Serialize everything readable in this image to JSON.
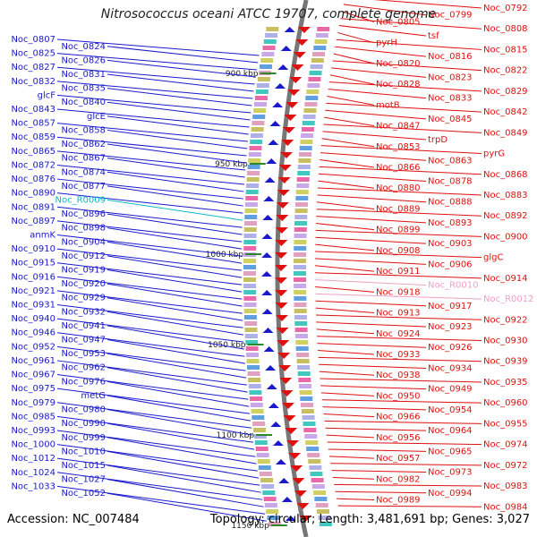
{
  "title": "Nitrosococcus oceani ATCC 19707, complete genome",
  "footer": {
    "accession": "Accession: NC_007484",
    "topology": "Topology: circular; Length: 3,481,691 bp; Genes: 3,027"
  },
  "colors": {
    "forward_strand": "#1a1acc",
    "reverse_strand": "#e01010",
    "rna": "#10b8c8",
    "rna_reverse": "#f0a0c8",
    "backbone": "#777777",
    "ticks": "#2a8a2a"
  },
  "scale_ticks": [
    "900 kbp",
    "950 kbp",
    "1000 kbp",
    "1050 kbp",
    "1100 kbp",
    "1150 kbp"
  ],
  "left_labels": [
    "Noc_0807",
    "Noc_0824",
    "Noc_0825",
    "Noc_0826",
    "Noc_0827",
    "Noc_0831",
    "Noc_0832",
    "Noc_0835",
    "glcF",
    "Noc_0840",
    "Noc_0843",
    "glcE",
    "Noc_0857",
    "Noc_0858",
    "Noc_0859",
    "Noc_0862",
    "Noc_0865",
    "Noc_0867",
    "Noc_0872",
    "Noc_0874",
    "Noc_0876",
    "Noc_0877",
    "Noc_0890",
    "Noc_R0009",
    "Noc_0891",
    "Noc_0896",
    "Noc_0897",
    "Noc_0898",
    "anmK",
    "Noc_0904",
    "Noc_0910",
    "Noc_0912",
    "Noc_0915",
    "Noc_0919",
    "Noc_0916",
    "Noc_0920",
    "Noc_0921",
    "Noc_0929",
    "Noc_0931",
    "Noc_0932",
    "Noc_0940",
    "Noc_0941",
    "Noc_0946",
    "Noc_0947",
    "Noc_0952",
    "Noc_0953",
    "Noc_0961",
    "Noc_0962",
    "Noc_0967",
    "Noc_0976",
    "Noc_0975",
    "metG",
    "Noc_0979",
    "Noc_0980",
    "Noc_0985",
    "Noc_0990",
    "Noc_0993",
    "Noc_0999",
    "Noc_1000",
    "Noc_1010",
    "Noc_1012",
    "Noc_1015",
    "Noc_1024",
    "Noc_1027",
    "Noc_1033",
    "Noc_1052"
  ],
  "right_labels": [
    "Noc_0792",
    "Noc_0799",
    "Noc_0805",
    "Noc_0808",
    "tsf",
    "pyrH",
    "Noc_0815",
    "Noc_0816",
    "Noc_0820",
    "Noc_0822",
    "Noc_0823",
    "Noc_0828",
    "Noc_0829",
    "Noc_0833",
    "motB",
    "Noc_0842",
    "Noc_0845",
    "Noc_0847",
    "Noc_0849",
    "trpD",
    "Noc_0853",
    "pyrG",
    "Noc_0863",
    "Noc_0866",
    "Noc_0868",
    "Noc_0878",
    "Noc_0880",
    "Noc_0883",
    "Noc_0888",
    "Noc_0889",
    "Noc_0892",
    "Noc_0893",
    "Noc_0899",
    "Noc_0900",
    "Noc_0903",
    "Noc_0908",
    "glgC",
    "Noc_0906",
    "Noc_0911",
    "Noc_0914",
    "Noc_R0010",
    "Noc_0918",
    "Noc_R0012",
    "Noc_0917",
    "Noc_0913",
    "Noc_0922",
    "Noc_0923",
    "Noc_0924",
    "Noc_0930",
    "Noc_0926",
    "Noc_0933",
    "Noc_0939",
    "Noc_0934",
    "Noc_0938",
    "Noc_0935",
    "Noc_0949",
    "Noc_0950",
    "Noc_0960",
    "Noc_0954",
    "Noc_0966",
    "Noc_0955",
    "Noc_0964",
    "Noc_0956",
    "Noc_0974",
    "Noc_0965",
    "Noc_0957",
    "Noc_0972",
    "Noc_0973",
    "Noc_0982",
    "Noc_0983",
    "Noc_0994",
    "Noc_0989",
    "Noc_0984"
  ]
}
